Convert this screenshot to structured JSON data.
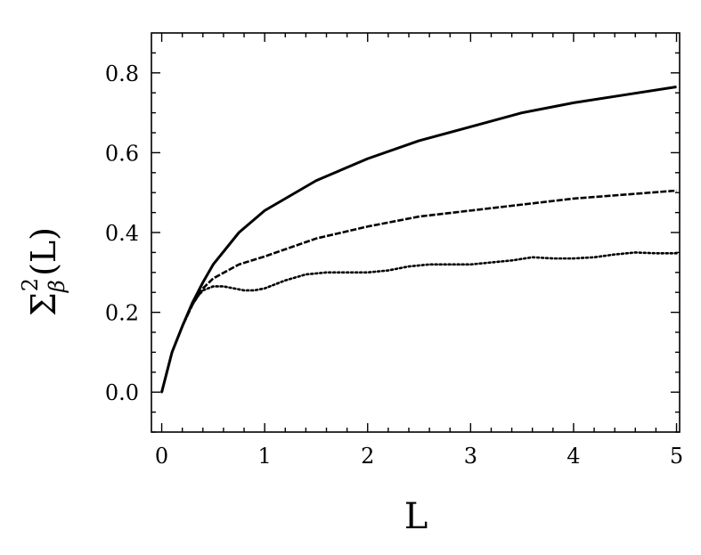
{
  "chart_data": {
    "type": "line",
    "title": "",
    "xlabel": "L",
    "ylabel": "Σ²β(L)",
    "ylabel_parts": {
      "base": "Σ",
      "sup": "2",
      "sub": "β",
      "arg": "(L)"
    },
    "xlim": [
      -0.1,
      5.03
    ],
    "ylim": [
      -0.1,
      0.9
    ],
    "xticks": [
      0,
      1,
      2,
      3,
      4,
      5
    ],
    "xtick_labels": [
      "0",
      "1",
      "2",
      "3",
      "4",
      "5"
    ],
    "yticks": [
      0.0,
      0.2,
      0.4,
      0.6,
      0.8
    ],
    "ytick_labels": [
      "0.0",
      "0.2",
      "0.4",
      "0.6",
      "0.8"
    ],
    "grid": false,
    "legend": "none",
    "series": [
      {
        "style": "solid",
        "color": "#000000",
        "x": [
          0,
          0.1,
          0.2,
          0.3,
          0.4,
          0.5,
          0.75,
          1.0,
          1.5,
          2.0,
          2.5,
          3.0,
          3.5,
          4.0,
          4.5,
          5.0
        ],
        "y": [
          0.0,
          0.1,
          0.165,
          0.225,
          0.275,
          0.32,
          0.4,
          0.455,
          0.53,
          0.585,
          0.63,
          0.665,
          0.7,
          0.725,
          0.745,
          0.765
        ]
      },
      {
        "style": "dashed",
        "color": "#000000",
        "x": [
          0,
          0.1,
          0.2,
          0.3,
          0.4,
          0.5,
          0.75,
          1.0,
          1.5,
          2.0,
          2.5,
          3.0,
          3.5,
          4.0,
          4.5,
          5.0
        ],
        "y": [
          0.0,
          0.1,
          0.165,
          0.22,
          0.26,
          0.285,
          0.32,
          0.34,
          0.385,
          0.415,
          0.44,
          0.455,
          0.47,
          0.485,
          0.495,
          0.505
        ]
      },
      {
        "style": "dotted",
        "color": "#000000",
        "x": [
          0,
          0.1,
          0.2,
          0.3,
          0.35,
          0.4,
          0.5,
          0.6,
          0.7,
          0.8,
          0.9,
          1.0,
          1.2,
          1.4,
          1.6,
          1.8,
          2.0,
          2.2,
          2.4,
          2.6,
          2.8,
          3.0,
          3.2,
          3.4,
          3.6,
          3.8,
          4.0,
          4.2,
          4.4,
          4.6,
          4.8,
          5.0
        ],
        "y": [
          0.0,
          0.1,
          0.165,
          0.22,
          0.24,
          0.255,
          0.265,
          0.265,
          0.26,
          0.255,
          0.255,
          0.26,
          0.28,
          0.295,
          0.3,
          0.3,
          0.3,
          0.305,
          0.315,
          0.32,
          0.32,
          0.32,
          0.325,
          0.33,
          0.338,
          0.335,
          0.335,
          0.338,
          0.345,
          0.35,
          0.348,
          0.348
        ]
      }
    ]
  }
}
